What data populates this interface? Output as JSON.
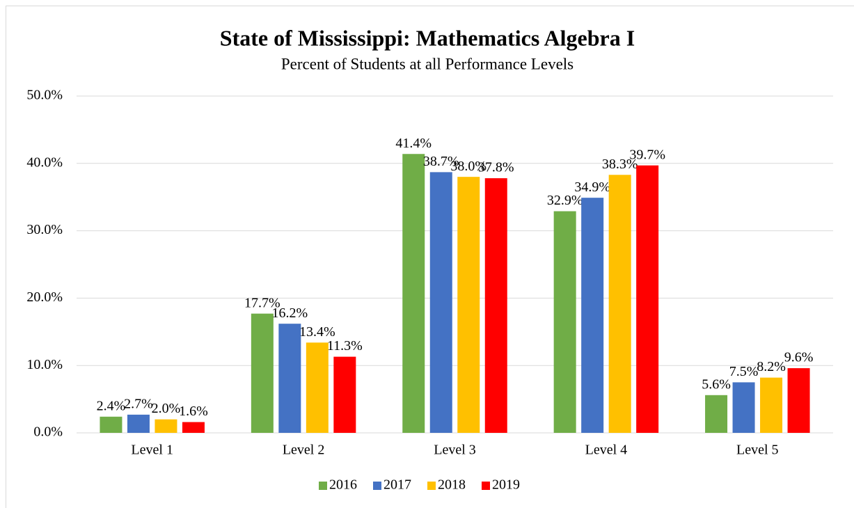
{
  "chart_data": {
    "type": "bar",
    "title": "State of Mississippi: Mathematics Algebra I",
    "subtitle": "Percent of Students at all Performance Levels",
    "categories": [
      "Level 1",
      "Level 2",
      "Level 3",
      "Level 4",
      "Level 5"
    ],
    "series": [
      {
        "name": "2016",
        "color": "#70ad47",
        "values": [
          2.4,
          17.7,
          41.4,
          32.9,
          5.6
        ],
        "value_labels": [
          "2.4%",
          "17.7%",
          "41.4%",
          "32.9%",
          "5.6%"
        ]
      },
      {
        "name": "2017",
        "color": "#4472c4",
        "values": [
          2.7,
          16.2,
          38.7,
          34.9,
          7.5
        ],
        "value_labels": [
          "2.7%",
          "16.2%",
          "38.7%",
          "34.9%",
          "7.5%"
        ]
      },
      {
        "name": "2018",
        "color": "#ffc000",
        "values": [
          2.0,
          13.4,
          38.0,
          38.3,
          8.2
        ],
        "value_labels": [
          "2.0%",
          "13.4%",
          "38.0%",
          "38.3%",
          "8.2%"
        ]
      },
      {
        "name": "2019",
        "color": "#ff0000",
        "values": [
          1.6,
          11.3,
          37.8,
          39.7,
          9.6
        ],
        "value_labels": [
          "1.6%",
          "11.3%",
          "37.8%",
          "39.7%",
          "9.6%"
        ]
      }
    ],
    "ylim": [
      0,
      50
    ],
    "yticks": [
      {
        "value": 0,
        "label": "0.0%"
      },
      {
        "value": 10,
        "label": "10.0%"
      },
      {
        "value": 20,
        "label": "20.0%"
      },
      {
        "value": 30,
        "label": "30.0%"
      },
      {
        "value": 40,
        "label": "40.0%"
      },
      {
        "value": 50,
        "label": "50.0%"
      }
    ],
    "grid": true,
    "legend": "bottom"
  }
}
